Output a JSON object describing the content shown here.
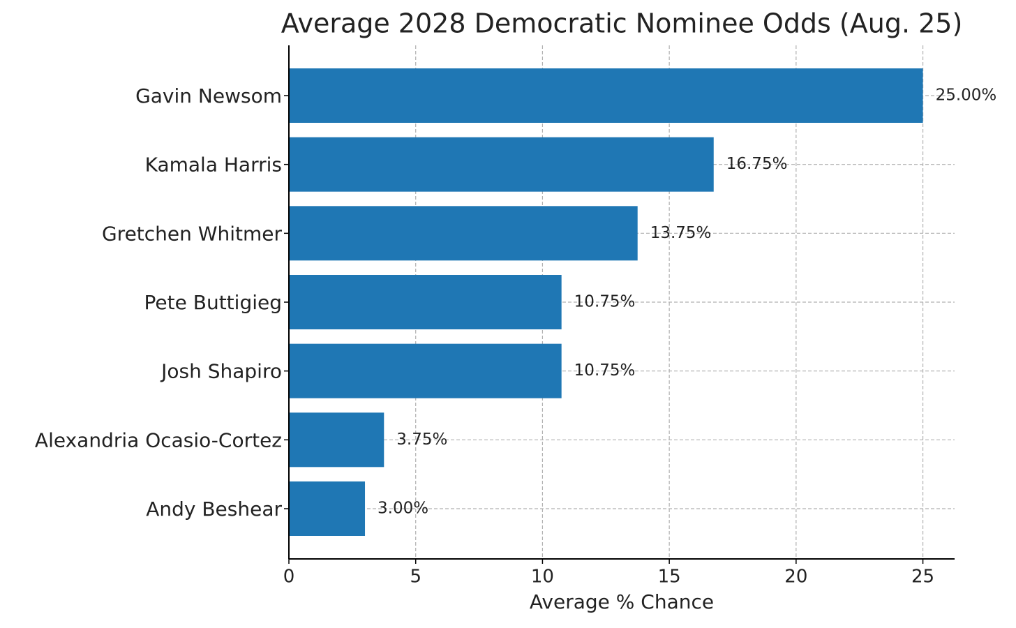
{
  "chart_data": {
    "type": "barh",
    "title": "Average 2028 Democratic Nominee Odds (Aug. 25)",
    "x_label": "Average % Chance",
    "categories": [
      "Gavin Newsom",
      "Kamala Harris",
      "Gretchen Whitmer",
      "Pete Buttigieg",
      "Josh Shapiro",
      "Alexandria Ocasio-Cortez",
      "Andy Beshear"
    ],
    "values": [
      25,
      16.75,
      13.75,
      10.75,
      10.75,
      3.75,
      3
    ],
    "value_labels": [
      "25.00%",
      "16.75%",
      "13.75%",
      "10.75%",
      "10.75%",
      "3.75%",
      "3.00%"
    ],
    "color": "#1f77b4",
    "xlim": [
      0,
      26.25
    ],
    "xticks": [
      0,
      5,
      10,
      15,
      20,
      25
    ],
    "grid": true
  }
}
